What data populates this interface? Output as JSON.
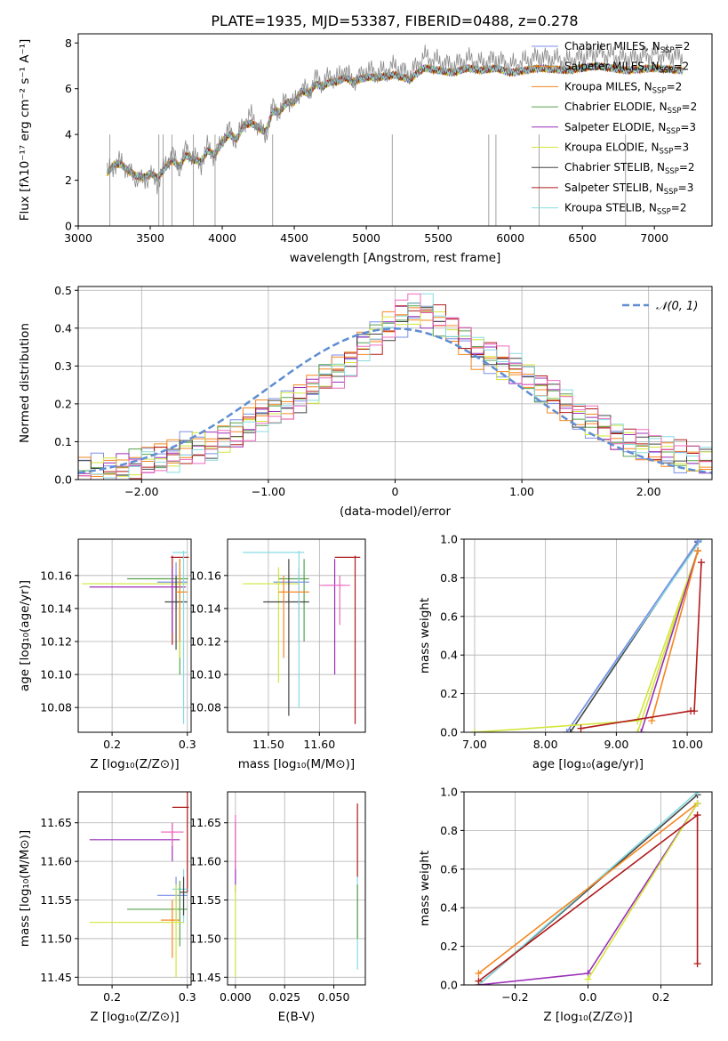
{
  "figure_title": "PLATE=1935, MJD=53387, FIBERID=0488, z=0.278",
  "model_colors": [
    "#7b8fe8",
    "#f5861f",
    "#f5861f",
    "#57a34d",
    "#9b2fb8",
    "#d2e63a",
    "#444444",
    "#b01b1b",
    "#87dbe0"
  ],
  "chart_data": [
    {
      "id": "spectrum",
      "type": "line",
      "xlabel": "wavelength [Angstrom, rest frame]",
      "ylabel": "Flux [fλ10⁻¹⁷ erg cm⁻² s⁻¹ A⁻¹]",
      "xlim": [
        3000,
        7400
      ],
      "ylim": [
        0,
        8.4
      ],
      "xticks": [
        3000,
        3500,
        4000,
        4500,
        5000,
        5500,
        6000,
        6500,
        7000
      ],
      "yticks": [
        0,
        2,
        4,
        6,
        8
      ],
      "x": [
        3200,
        3250,
        3300,
        3350,
        3400,
        3450,
        3500,
        3550,
        3600,
        3650,
        3700,
        3750,
        3800,
        3850,
        3900,
        3950,
        4000,
        4050,
        4100,
        4150,
        4200,
        4250,
        4300,
        4350,
        4400,
        4450,
        4500,
        4550,
        4600,
        4650,
        4700,
        4750,
        4800,
        4850,
        4900,
        4950,
        5000,
        5100,
        5200,
        5300,
        5400,
        5500,
        5600,
        5700,
        5800,
        5900,
        6000,
        6200,
        6400,
        6600,
        6800,
        7000,
        7200
      ],
      "data_flux": [
        2.3,
        2.7,
        2.8,
        2.4,
        2.1,
        2.0,
        2.2,
        1.9,
        2.6,
        3.2,
        2.5,
        3.4,
        3.0,
        2.7,
        3.5,
        3.0,
        3.8,
        4.2,
        3.7,
        4.6,
        4.8,
        4.4,
        3.9,
        5.2,
        5.0,
        5.6,
        5.3,
        6.1,
        5.8,
        6.5,
        6.2,
        6.6,
        6.4,
        6.9,
        6.3,
        6.5,
        6.8,
        6.7,
        7.0,
        6.6,
        7.4,
        7.2,
        7.0,
        7.3,
        7.1,
        7.3,
        7.0,
        7.4,
        7.2,
        7.6,
        7.3,
        7.5,
        7.4
      ],
      "model_flux": [
        2.3,
        2.7,
        2.7,
        2.4,
        2.2,
        2.1,
        2.3,
        2.1,
        2.5,
        2.9,
        2.6,
        3.1,
        2.9,
        2.8,
        3.3,
        3.1,
        3.7,
        4.0,
        3.8,
        4.4,
        4.5,
        4.3,
        4.1,
        5.0,
        5.0,
        5.4,
        5.4,
        5.9,
        5.8,
        6.2,
        6.1,
        6.3,
        6.3,
        6.5,
        6.3,
        6.4,
        6.5,
        6.5,
        6.6,
        6.4,
        6.9,
        6.8,
        6.7,
        6.9,
        6.8,
        6.9,
        6.7,
        6.9,
        6.8,
        7.0,
        6.8,
        6.9,
        6.8
      ],
      "legend": [
        "Chabrier MILES, N_SSP=2",
        "Salpeter MILES, N_SSP=2",
        "Kroupa MILES, N_SSP=2",
        "Chabrier ELODIE, N_SSP=2",
        "Salpeter ELODIE, N_SSP=3",
        "Kroupa ELODIE, N_SSP=3",
        "Chabrier STELIB, N_SSP=2",
        "Salpeter STELIB, N_SSP=3",
        "Kroupa STELIB, N_SSP=2"
      ],
      "legend_position": "right",
      "grid": false
    },
    {
      "id": "residuals",
      "type": "bar",
      "xlabel": "(data-model)/error",
      "ylabel": "Normed distribution",
      "xlim": [
        -2.5,
        2.5
      ],
      "ylim": [
        0,
        0.51
      ],
      "xticks": [
        -2,
        -1,
        0,
        1,
        2
      ],
      "yticks": [
        0.0,
        0.1,
        0.2,
        0.3,
        0.4,
        0.5
      ],
      "bin_width": 0.1,
      "bin_starts": [
        -2.5,
        -2.4,
        -2.3,
        -2.2,
        -2.1,
        -2.0,
        -1.9,
        -1.8,
        -1.7,
        -1.6,
        -1.5,
        -1.4,
        -1.3,
        -1.2,
        -1.1,
        -1.0,
        -0.9,
        -0.8,
        -0.7,
        -0.6,
        -0.5,
        -0.4,
        -0.3,
        -0.2,
        -0.1,
        0.0,
        0.1,
        0.2,
        0.3,
        0.4,
        0.5,
        0.6,
        0.7,
        0.8,
        0.9,
        1.0,
        1.1,
        1.2,
        1.3,
        1.4,
        1.5,
        1.6,
        1.7,
        1.8,
        1.9,
        2.0,
        2.1,
        2.2,
        2.3,
        2.4
      ],
      "base_hist": [
        0.02,
        0.02,
        0.03,
        0.03,
        0.04,
        0.05,
        0.06,
        0.06,
        0.08,
        0.09,
        0.09,
        0.11,
        0.12,
        0.15,
        0.17,
        0.18,
        0.2,
        0.22,
        0.24,
        0.27,
        0.29,
        0.31,
        0.36,
        0.38,
        0.41,
        0.43,
        0.44,
        0.44,
        0.42,
        0.4,
        0.37,
        0.34,
        0.33,
        0.3,
        0.29,
        0.27,
        0.24,
        0.22,
        0.2,
        0.17,
        0.15,
        0.13,
        0.11,
        0.1,
        0.09,
        0.08,
        0.07,
        0.06,
        0.05,
        0.05
      ],
      "reference_curve": {
        "label": "𝒩(0, 1)",
        "mean": 0,
        "sigma": 1,
        "color": "#5f8dd3"
      },
      "legend_position": "top-right",
      "grid": true
    },
    {
      "id": "age-vs-z",
      "type": "scatter",
      "xlabel": "Z [log₁₀(Z/Z⊙)]",
      "ylabel": "age  [log₁₀(age/yr)]",
      "xlim": [
        0.155,
        0.305
      ],
      "ylim": [
        10.065,
        10.182
      ],
      "xticks": [
        0.2,
        0.3
      ],
      "yticks": [
        10.08,
        10.1,
        10.12,
        10.14,
        10.16
      ],
      "grid": true,
      "points": [
        {
          "x": 0.28,
          "y": 10.171,
          "xlo": 0.278,
          "xhi": 0.302,
          "ylo": 10.118,
          "yhi": 10.172,
          "color": "#b01b1b"
        },
        {
          "x": 0.29,
          "y": 10.158,
          "xlo": 0.22,
          "xhi": 0.301,
          "ylo": 10.1,
          "yhi": 10.17,
          "color": "#57a34d"
        },
        {
          "x": 0.285,
          "y": 10.156,
          "xlo": 0.26,
          "xhi": 0.3,
          "ylo": 10.14,
          "yhi": 10.168,
          "color": "#7b8fe8"
        },
        {
          "x": 0.29,
          "y": 10.155,
          "xlo": 0.16,
          "xhi": 0.3,
          "ylo": 10.11,
          "yhi": 10.168,
          "color": "#d2e63a"
        },
        {
          "x": 0.28,
          "y": 10.153,
          "xlo": 0.17,
          "xhi": 0.298,
          "ylo": 10.125,
          "yhi": 10.165,
          "color": "#9b2fb8"
        },
        {
          "x": 0.285,
          "y": 10.144,
          "xlo": 0.27,
          "xhi": 0.3,
          "ylo": 10.115,
          "yhi": 10.16,
          "color": "#444444"
        },
        {
          "x": 0.295,
          "y": 10.174,
          "xlo": 0.28,
          "xhi": 0.3,
          "ylo": 10.07,
          "yhi": 10.175,
          "color": "#87dbe0"
        },
        {
          "x": 0.29,
          "y": 10.15,
          "xlo": 0.285,
          "xhi": 0.3,
          "ylo": 10.12,
          "yhi": 10.17,
          "color": "#f5861f"
        }
      ]
    },
    {
      "id": "age-vs-mass",
      "type": "scatter",
      "xlabel": "mass [log₁₀(M/M⊙)]",
      "ylabel": "",
      "xlim": [
        11.42,
        11.69
      ],
      "ylim": [
        10.065,
        10.182
      ],
      "xticks": [
        11.5,
        11.6
      ],
      "yticks": [
        10.08,
        10.1,
        10.12,
        10.14,
        10.16
      ],
      "grid": true,
      "points": [
        {
          "x": 11.67,
          "y": 10.171,
          "xlo": 11.63,
          "xhi": 11.68,
          "ylo": 10.07,
          "yhi": 10.172,
          "color": "#b01b1b"
        },
        {
          "x": 11.57,
          "y": 10.158,
          "xlo": 11.52,
          "xhi": 11.58,
          "ylo": 10.12,
          "yhi": 10.17,
          "color": "#57a34d"
        },
        {
          "x": 11.56,
          "y": 10.156,
          "xlo": 11.51,
          "xhi": 11.58,
          "ylo": 10.12,
          "yhi": 10.165,
          "color": "#7b8fe8"
        },
        {
          "x": 11.52,
          "y": 10.155,
          "xlo": 11.45,
          "xhi": 11.56,
          "ylo": 10.095,
          "yhi": 10.165,
          "color": "#d2e63a"
        },
        {
          "x": 11.63,
          "y": 10.154,
          "xlo": 11.61,
          "xhi": 11.65,
          "ylo": 10.1,
          "yhi": 10.17,
          "color": "#9b2fb8"
        },
        {
          "x": 11.54,
          "y": 10.144,
          "xlo": 11.49,
          "xhi": 11.58,
          "ylo": 10.075,
          "yhi": 10.17,
          "color": "#444444"
        },
        {
          "x": 11.56,
          "y": 10.174,
          "xlo": 11.45,
          "xhi": 11.57,
          "ylo": 10.08,
          "yhi": 10.175,
          "color": "#87dbe0"
        },
        {
          "x": 11.53,
          "y": 10.15,
          "xlo": 11.52,
          "xhi": 11.58,
          "ylo": 10.11,
          "yhi": 10.16,
          "color": "#f5861f"
        },
        {
          "x": 11.64,
          "y": 10.154,
          "xlo": 11.6,
          "xhi": 11.66,
          "ylo": 10.13,
          "yhi": 10.16,
          "color": "#ee6bbf"
        }
      ]
    },
    {
      "id": "weight-vs-age",
      "type": "line",
      "xlabel": "age  [log₁₀(age/yr)]",
      "ylabel": "mass weight",
      "xlim": [
        6.85,
        10.35
      ],
      "ylim": [
        0,
        1.0
      ],
      "xticks": [
        7,
        8,
        9,
        10
      ],
      "yticks": [
        0.0,
        0.2,
        0.4,
        0.6,
        0.8,
        1.0
      ],
      "grid": true,
      "series": [
        {
          "x": [
            8.35,
            10.15
          ],
          "y": [
            0.0,
            0.985
          ],
          "color": "#444444"
        },
        {
          "x": [
            8.3,
            10.2
          ],
          "y": [
            0.0,
            1.0
          ],
          "color": "#87dbe0"
        },
        {
          "x": [
            8.3,
            10.15
          ],
          "y": [
            0.0,
            0.99
          ],
          "color": "#7b8fe8"
        },
        {
          "x": [
            9.3,
            10.15
          ],
          "y": [
            0.0,
            0.94
          ],
          "color": "#d2e63a"
        },
        {
          "x": [
            7.0,
            9.3,
            10.15
          ],
          "y": [
            0.0,
            0.06,
            0.94
          ],
          "color": "#d2e63a"
        },
        {
          "x": [
            9.35,
            10.15
          ],
          "y": [
            0.0,
            0.94
          ],
          "color": "#9b2fb8"
        },
        {
          "x": [
            9.5,
            10.15
          ],
          "y": [
            0.06,
            0.94
          ],
          "color": "#f5861f"
        },
        {
          "x": [
            8.5,
            10.05,
            10.1,
            10.2
          ],
          "y": [
            0.02,
            0.11,
            0.11,
            0.88
          ],
          "color": "#b01b1b"
        }
      ]
    },
    {
      "id": "mass-vs-z",
      "type": "scatter",
      "xlabel": "Z [log₁₀(Z/Z⊙)]",
      "ylabel": "mass [log₁₀(M/M⊙)]",
      "xlim": [
        0.155,
        0.305
      ],
      "ylim": [
        11.44,
        11.69
      ],
      "xticks": [
        0.2,
        0.3
      ],
      "yticks": [
        11.45,
        11.5,
        11.55,
        11.6,
        11.65
      ],
      "grid": true,
      "points": [
        {
          "x": 0.3,
          "y": 11.67,
          "xlo": 0.28,
          "xhi": 0.302,
          "ylo": 11.56,
          "yhi": 11.69,
          "color": "#b01b1b"
        },
        {
          "x": 0.28,
          "y": 11.628,
          "xlo": 0.17,
          "xhi": 0.29,
          "ylo": 11.6,
          "yhi": 11.65,
          "color": "#9b2fb8"
        },
        {
          "x": 0.28,
          "y": 11.638,
          "xlo": 0.265,
          "xhi": 0.295,
          "ylo": 11.62,
          "yhi": 11.65,
          "color": "#ee6bbf"
        },
        {
          "x": 0.295,
          "y": 11.564,
          "xlo": 0.28,
          "xhi": 0.3,
          "ylo": 11.52,
          "yhi": 11.59,
          "color": "#87dbe0"
        },
        {
          "x": 0.285,
          "y": 11.556,
          "xlo": 0.26,
          "xhi": 0.3,
          "ylo": 11.52,
          "yhi": 11.58,
          "color": "#7b8fe8"
        },
        {
          "x": 0.29,
          "y": 11.538,
          "xlo": 0.22,
          "xhi": 0.3,
          "ylo": 11.49,
          "yhi": 11.575,
          "color": "#57a34d"
        },
        {
          "x": 0.28,
          "y": 11.524,
          "xlo": 0.265,
          "xhi": 0.29,
          "ylo": 11.475,
          "yhi": 11.55,
          "color": "#f5861f"
        },
        {
          "x": 0.285,
          "y": 11.521,
          "xlo": 0.17,
          "xhi": 0.295,
          "ylo": 11.45,
          "yhi": 11.57,
          "color": "#d2e63a"
        },
        {
          "x": 0.295,
          "y": 11.56,
          "xlo": 0.29,
          "xhi": 0.3,
          "ylo": 11.53,
          "yhi": 11.58,
          "color": "#444444"
        }
      ]
    },
    {
      "id": "mass-vs-ebv",
      "type": "scatter",
      "xlabel": "E(B-V)",
      "ylabel": "",
      "xlim": [
        -0.004,
        0.066
      ],
      "ylim": [
        11.44,
        11.69
      ],
      "xticks": [
        0.0,
        0.025,
        0.05
      ],
      "xtick_labels": [
        "0.000",
        "0.025",
        "0.050"
      ],
      "yticks": [
        11.45,
        11.5,
        11.55,
        11.6,
        11.65
      ],
      "grid": true,
      "points": [
        {
          "x": 0.0,
          "y": 11.628,
          "ylo": 11.56,
          "yhi": 11.65,
          "color": "#9b2fb8"
        },
        {
          "x": 0.0,
          "y": 11.52,
          "ylo": 11.45,
          "yhi": 11.57,
          "color": "#d2e63a"
        },
        {
          "x": 0.0,
          "y": 11.6,
          "ylo": 11.59,
          "yhi": 11.66,
          "color": "#ee6bbf"
        },
        {
          "x": 0.062,
          "y": 11.67,
          "ylo": 11.58,
          "yhi": 11.675,
          "color": "#b01b1b"
        },
        {
          "x": 0.062,
          "y": 11.56,
          "ylo": 11.46,
          "yhi": 11.58,
          "color": "#87dbe0"
        },
        {
          "x": 0.062,
          "y": 11.54,
          "ylo": 11.5,
          "yhi": 11.57,
          "color": "#57a34d"
        }
      ]
    },
    {
      "id": "weight-vs-z",
      "type": "line",
      "xlabel": "Z [log₁₀(Z/Z⊙)]",
      "ylabel": "mass weight",
      "xlim": [
        -0.34,
        0.34
      ],
      "ylim": [
        0,
        1.0
      ],
      "xticks": [
        -0.2,
        0.0,
        0.2
      ],
      "xtick_labels": [
        "−0.2",
        "0.0",
        "0.2"
      ],
      "yticks": [
        0.0,
        0.2,
        0.4,
        0.6,
        0.8,
        1.0
      ],
      "grid": true,
      "series": [
        {
          "x": [
            -0.3,
            0.3
          ],
          "y": [
            0.0,
            0.985
          ],
          "color": "#444444"
        },
        {
          "x": [
            -0.3,
            0.3
          ],
          "y": [
            0.0,
            1.0
          ],
          "color": "#87dbe0"
        },
        {
          "x": [
            -0.3,
            0.3
          ],
          "y": [
            0.06,
            0.94
          ],
          "color": "#f5861f"
        },
        {
          "x": [
            -0.3,
            0.0,
            0.3
          ],
          "y": [
            0.0,
            0.06,
            0.94
          ],
          "color": "#9b2fb8"
        },
        {
          "x": [
            0.0,
            0.3
          ],
          "y": [
            0.03,
            0.94
          ],
          "color": "#d2e63a"
        },
        {
          "x": [
            -0.3,
            0.3,
            0.3
          ],
          "y": [
            0.02,
            0.88,
            0.11
          ],
          "color": "#b01b1b"
        }
      ]
    }
  ]
}
